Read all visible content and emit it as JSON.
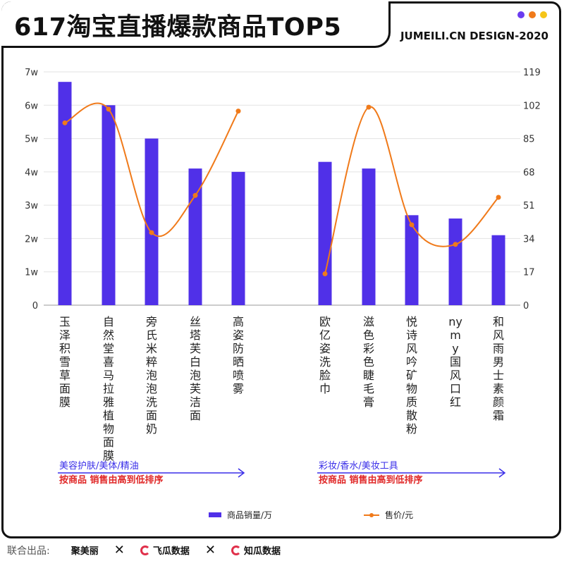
{
  "title": "617淘宝直播爆款商品TOP5",
  "brand": "JUMEILI.CN DESIGN-2020",
  "colors": {
    "bar": "#5030e8",
    "line": "#f07a1a",
    "groupName": "#3a2ee8",
    "sortNote": "#e02828"
  },
  "header_dots": [
    "#6b3cf0",
    "#f07a1a",
    "#f5c518"
  ],
  "chart_data": {
    "type": "bar",
    "categories": [
      "玉泽积雪草面膜",
      "自然堂喜马拉雅植物面膜",
      "旁氏米粹泡泡洗面奶",
      "丝塔芙白泡芙洁面",
      "高姿防晒喷雾",
      "欧亿姿洗脸巾",
      "滋色彩色睫毛膏",
      "悦诗风吟矿物质散粉",
      "nymy国风口红",
      "和风雨男士素颜霜"
    ],
    "series": [
      {
        "name": "商品销量/万",
        "type": "bar",
        "axis": "left",
        "values": [
          6.7,
          6.0,
          5.0,
          4.1,
          4.0,
          4.3,
          4.1,
          2.7,
          2.6,
          2.1
        ]
      },
      {
        "name": "售价/元",
        "type": "line",
        "axis": "right",
        "values": [
          93,
          100,
          37,
          56,
          99,
          16,
          101,
          41,
          31,
          55
        ]
      }
    ],
    "y_left": {
      "ticks": [
        "0",
        "1w",
        "2w",
        "3w",
        "4w",
        "5w",
        "6w",
        "7w"
      ],
      "min": 0,
      "max": 7
    },
    "y_right": {
      "ticks": [
        "0",
        "17",
        "34",
        "51",
        "68",
        "85",
        "102",
        "119"
      ],
      "min": 0,
      "max": 119
    },
    "grid": true,
    "legend_position": "bottom",
    "groups": [
      {
        "name": "美容护肤/美体/精油",
        "note": "按商品 销售由高到低排序"
      },
      {
        "name": "彩妆/香水/美妆工具",
        "note": "按商品 销售由高到低排序"
      }
    ]
  },
  "legend": {
    "bar_label": "商品销量/万",
    "line_label": "售价/元"
  },
  "footer": {
    "label": "联合出品:",
    "partners": [
      "聚美丽",
      "飞瓜数据",
      "知瓜数据"
    ],
    "separator": "✕"
  }
}
